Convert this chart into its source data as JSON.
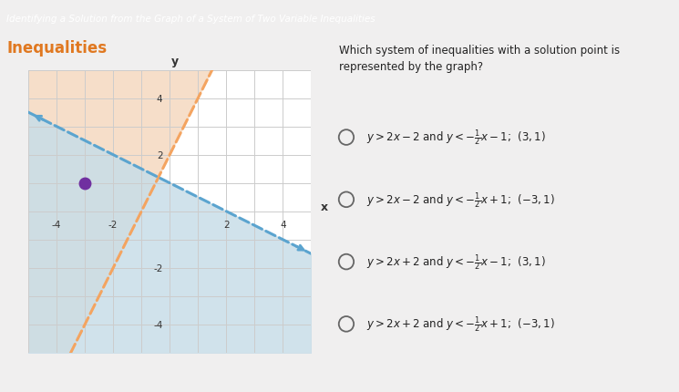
{
  "title": "Inequalities",
  "header": "Identifying a Solution from the Graph of a System of Two Variable",
  "question": "Which system of inequalities with a solution point is\nrepresented by the graph?",
  "line1_slope": 2,
  "line1_intercept": 2,
  "line1_color": "#F4A460",
  "line1_style": "dashed",
  "line2_slope": -0.5,
  "line2_intercept": 1,
  "line2_color": "#5BA4CF",
  "line2_style": "dashed",
  "shade1_color": "#F5D9C0",
  "shade2_color": "#C8DDE8",
  "point": [
    -3,
    1
  ],
  "point_color": "#7030A0",
  "xmin": -5,
  "xmax": 5,
  "ymin": -5,
  "ymax": 5,
  "graph_bg": "#FFFFFF",
  "grid_color": "#CCCCCC",
  "page_bg": "#F0EFEF",
  "title_color": "#E07820",
  "header_bg_top": "#4472C4",
  "header_bg_bottom": "#E07820",
  "tick_labels": [
    -4,
    -2,
    2,
    4
  ],
  "option1": "y > 2x − 2 and y < −",
  "option2": "y > 2x − 2 and y < −",
  "option3": "y > 2x + 2 and y < −",
  "option4": "y > 2x + 2 and y < −"
}
